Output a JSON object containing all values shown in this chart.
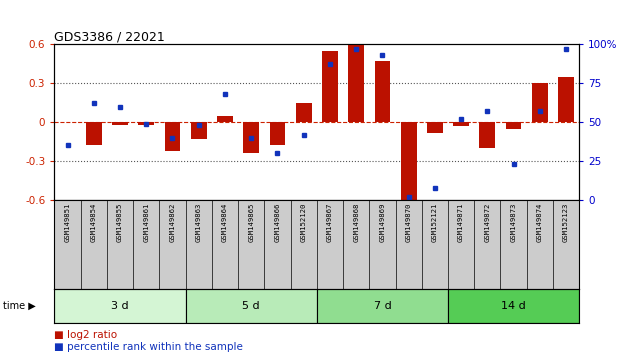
{
  "title": "GDS3386 / 22021",
  "samples": [
    "GSM149851",
    "GSM149854",
    "GSM149855",
    "GSM149861",
    "GSM149862",
    "GSM149863",
    "GSM149864",
    "GSM149865",
    "GSM149866",
    "GSM152120",
    "GSM149867",
    "GSM149868",
    "GSM149869",
    "GSM149870",
    "GSM152121",
    "GSM149871",
    "GSM149872",
    "GSM149873",
    "GSM149874",
    "GSM152123"
  ],
  "log2_ratio": [
    0.0,
    -0.18,
    -0.02,
    -0.02,
    -0.22,
    -0.13,
    0.05,
    -0.24,
    -0.18,
    0.15,
    0.55,
    0.6,
    0.47,
    -0.62,
    -0.08,
    -0.03,
    -0.2,
    -0.05,
    0.3,
    0.35
  ],
  "percentile_rank": [
    35,
    62,
    60,
    49,
    40,
    48,
    68,
    40,
    30,
    42,
    87,
    97,
    93,
    2,
    8,
    52,
    57,
    23,
    57,
    97
  ],
  "groups": [
    {
      "label": "3 d",
      "start": 0,
      "end": 4,
      "color": "#d4f5d4"
    },
    {
      "label": "5 d",
      "start": 5,
      "end": 9,
      "color": "#b8ebb8"
    },
    {
      "label": "7 d",
      "start": 10,
      "end": 14,
      "color": "#90dd90"
    },
    {
      "label": "14 d",
      "start": 15,
      "end": 19,
      "color": "#55cc55"
    }
  ],
  "ylim": [
    -0.6,
    0.6
  ],
  "yticks_left": [
    -0.6,
    -0.3,
    0.0,
    0.3,
    0.6
  ],
  "ytick_labels_left": [
    "-0.6",
    "-0.3",
    "0",
    "0.3",
    "0.6"
  ],
  "yticks_right": [
    0,
    25,
    50,
    75,
    100
  ],
  "ytick_labels_right": [
    "0",
    "25",
    "50",
    "75",
    "100%"
  ],
  "bar_color": "#bb1100",
  "dot_color": "#1133bb",
  "hline_color": "#cc2200",
  "grid_color": "#555555",
  "bg_color": "#ffffff",
  "tick_label_color_left": "#cc2200",
  "tick_label_color_right": "#0000cc",
  "legend_log2": "log2 ratio",
  "legend_pct": "percentile rank within the sample",
  "sample_bg": "#cccccc"
}
